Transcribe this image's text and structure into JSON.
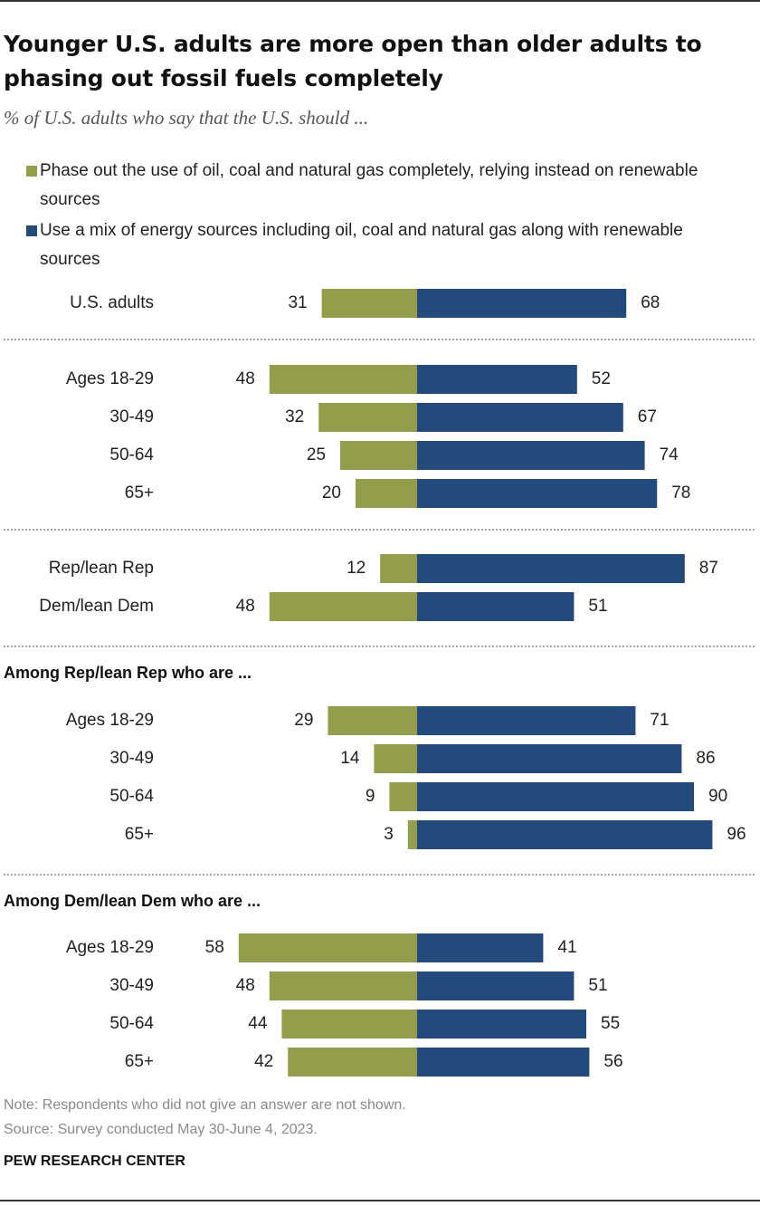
{
  "title": "Younger U.S. adults are more open than older adults to phasing out fossil fuels completely",
  "subtitle": "% of U.S. adults who say that the U.S. should ...",
  "colors": {
    "phase_out": "#949e4a",
    "mix": "#234a7d"
  },
  "chart_data": {
    "type": "bar",
    "orientation": "horizontal-diverging",
    "series": [
      {
        "name": "Phase out the use of oil, coal and natural gas completely, relying instead on renewable sources",
        "color": "#949e4a"
      },
      {
        "name": "Use a mix of energy sources including oil, coal and natural gas along with renewable sources",
        "color": "#234a7d"
      }
    ],
    "rows": [
      {
        "label": "U.S. adults",
        "phase_out": 31,
        "mix": 68
      },
      {
        "label": "Ages 18-29",
        "phase_out": 48,
        "mix": 52
      },
      {
        "label": "30-49",
        "phase_out": 32,
        "mix": 67
      },
      {
        "label": "50-64",
        "phase_out": 25,
        "mix": 74
      },
      {
        "label": "65+",
        "phase_out": 20,
        "mix": 78
      },
      {
        "label": "Rep/lean Rep",
        "phase_out": 12,
        "mix": 87
      },
      {
        "label": "Dem/lean Dem",
        "phase_out": 48,
        "mix": 51
      },
      {
        "label": "Ages 18-29",
        "phase_out": 29,
        "mix": 71
      },
      {
        "label": "30-49",
        "phase_out": 14,
        "mix": 86
      },
      {
        "label": "50-64",
        "phase_out": 9,
        "mix": 90
      },
      {
        "label": "65+",
        "phase_out": 3,
        "mix": 96
      },
      {
        "label": "Ages 18-29",
        "phase_out": 58,
        "mix": 41
      },
      {
        "label": "30-49",
        "phase_out": 48,
        "mix": 51
      },
      {
        "label": "50-64",
        "phase_out": 44,
        "mix": 55
      },
      {
        "label": "65+",
        "phase_out": 42,
        "mix": 56
      }
    ],
    "group_headings": [
      "Among Rep/lean Rep who are ...",
      "Among Dem/lean Dem who are ..."
    ]
  },
  "note": "Note: Respondents who did not give an answer are not shown.",
  "source": "Source: Survey conducted May 30-June 4, 2023.",
  "brand": "PEW RESEARCH CENTER"
}
